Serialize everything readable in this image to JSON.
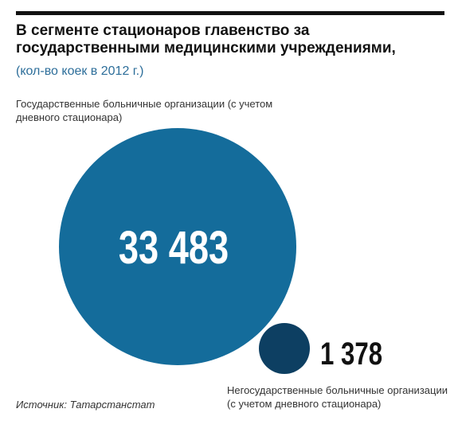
{
  "header": {
    "title": "В сегменте стационаров главенство за государственными медицинскими учреждениями,",
    "subtitle": "(кол-во коек в 2012 г.)"
  },
  "chart_data": {
    "type": "bubble",
    "title": "В сегменте стационаров главенство за государственными медицинскими учреждениями,",
    "subtitle": "(кол-во коек в 2012 г.)",
    "series": [
      {
        "name": "Государственные больничные организации (с учетом дневного стационара)",
        "value": 33483,
        "value_label": "33 483",
        "color": "#146c9b"
      },
      {
        "name": "Негосударственные больничные организации (с учетом дневного стационара)",
        "value": 1378,
        "value_label": "1 378",
        "color": "#0d3f62"
      }
    ]
  },
  "footer": {
    "source": "Источник: Татарстанстат"
  },
  "colors": {
    "accent": "#146c9b",
    "accent_dark": "#0d3f62",
    "subtitle": "#2d6e9a",
    "rule": "#111111"
  }
}
